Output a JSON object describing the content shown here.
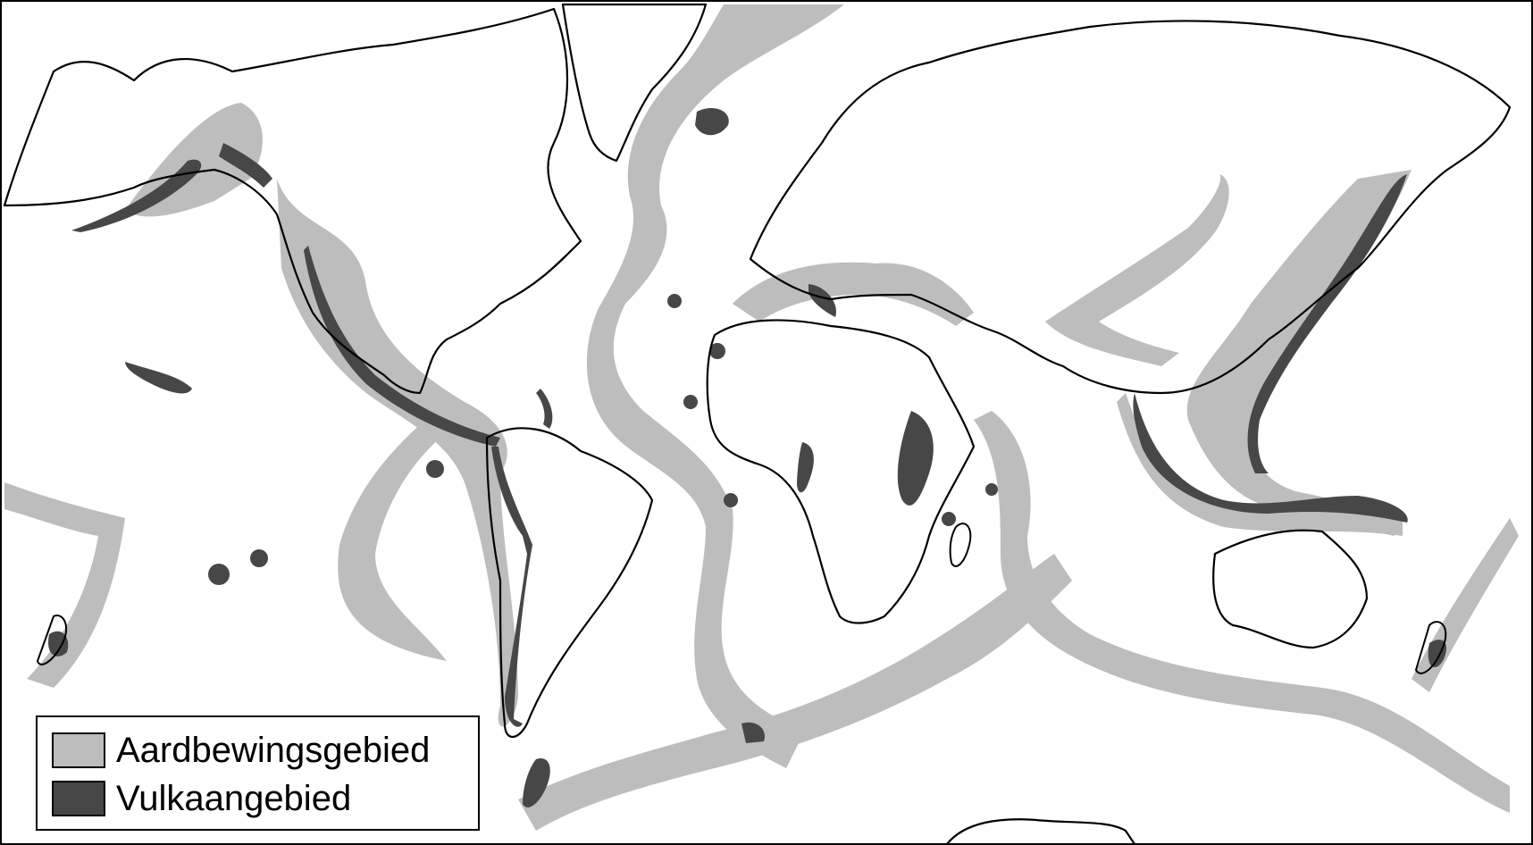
{
  "map": {
    "colors": {
      "background": "#ffffff",
      "coastline": "#000000",
      "earthquake_zone": "#bdbdbd",
      "volcano_zone": "#474747"
    }
  },
  "legend": {
    "items": [
      {
        "label": "Aardbewingsgebied",
        "color": "#bdbdbd"
      },
      {
        "label": "Vulkaangebied",
        "color": "#474747"
      }
    ]
  }
}
